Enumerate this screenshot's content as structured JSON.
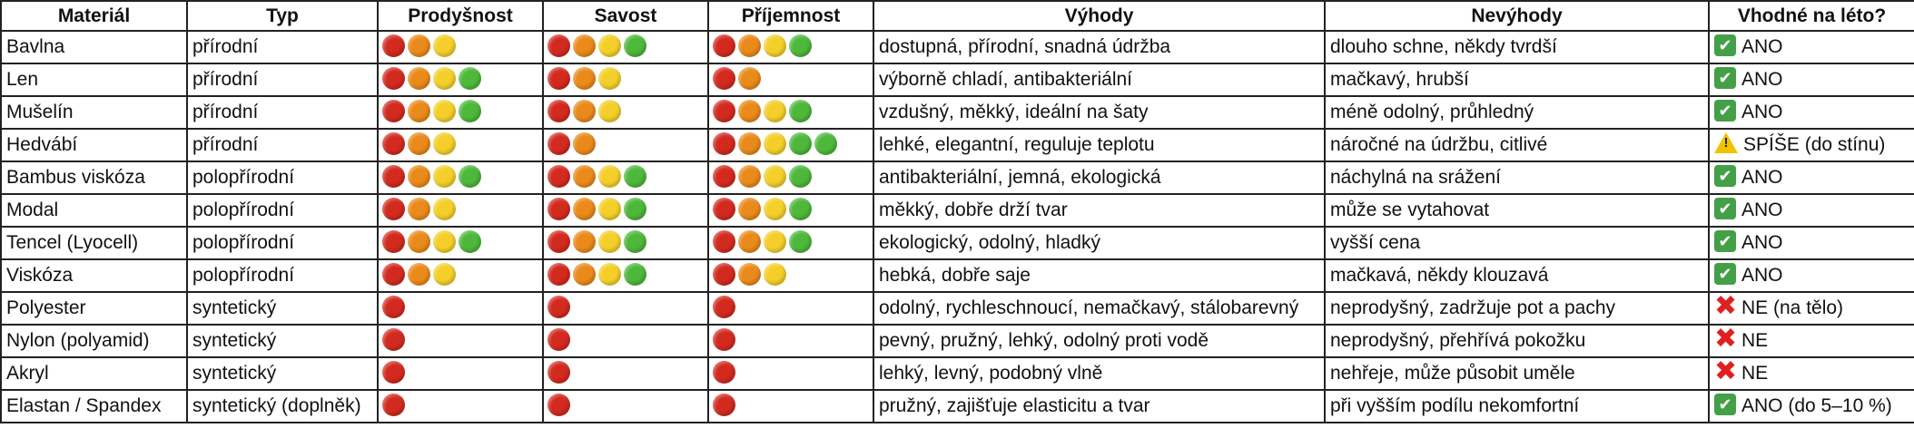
{
  "headers": [
    "Materiál",
    "Typ",
    "Prodyšnost",
    "Savost",
    "Příjemnost",
    "Výhody",
    "Nevýhody",
    "Vhodné na léto?"
  ],
  "colors": {
    "red": "#d32a1f",
    "orange": "#ea8a1a",
    "yellow": "#f4cf2a",
    "green": "#4db83a",
    "check": "#43a047",
    "warning": "#f2c200",
    "cross": "#e02020"
  },
  "dot_sequence": [
    "red",
    "orange",
    "yellow",
    "green",
    "green"
  ],
  "rows": [
    {
      "material": "Bavlna",
      "typ": "přírodní",
      "prodysnost": 3,
      "savost": 4,
      "prijemnost": 4,
      "vyhody": "dostupná, přírodní, snadná údržba",
      "nevyhody": "dlouho schne, někdy tvrdší",
      "verdict_icon": "check-icon",
      "verdict": "ANO"
    },
    {
      "material": "Len",
      "typ": "přírodní",
      "prodysnost": 4,
      "savost": 3,
      "prijemnost": 2,
      "vyhody": "výborně chladí, antibakteriální",
      "nevyhody": "mačkavý, hrubší",
      "verdict_icon": "check-icon",
      "verdict": "ANO"
    },
    {
      "material": "Mušelín",
      "typ": "přírodní",
      "prodysnost": 4,
      "savost": 3,
      "prijemnost": 4,
      "vyhody": "vzdušný, měkký, ideální na šaty",
      "nevyhody": "méně odolný, průhledný",
      "verdict_icon": "check-icon",
      "verdict": "ANO"
    },
    {
      "material": "Hedvábí",
      "typ": "přírodní",
      "prodysnost": 3,
      "savost": 2,
      "prijemnost": 5,
      "vyhody": "lehké, elegantní, reguluje teplotu",
      "nevyhody": "náročné na údržbu, citlivé",
      "verdict_icon": "warning-icon",
      "verdict": "SPÍŠE (do stínu)"
    },
    {
      "material": "Bambus viskóza",
      "typ": "polopřírodní",
      "prodysnost": 4,
      "savost": 4,
      "prijemnost": 4,
      "vyhody": "antibakteriální, jemná, ekologická",
      "nevyhody": "náchylná na srážení",
      "verdict_icon": "check-icon",
      "verdict": "ANO"
    },
    {
      "material": "Modal",
      "typ": "polopřírodní",
      "prodysnost": 3,
      "savost": 4,
      "prijemnost": 4,
      "vyhody": "měkký, dobře drží tvar",
      "nevyhody": "může se vytahovat",
      "verdict_icon": "check-icon",
      "verdict": "ANO"
    },
    {
      "material": "Tencel (Lyocell)",
      "typ": "polopřírodní",
      "prodysnost": 4,
      "savost": 4,
      "prijemnost": 4,
      "vyhody": "ekologický, odolný, hladký",
      "nevyhody": "vyšší cena",
      "verdict_icon": "check-icon",
      "verdict": "ANO"
    },
    {
      "material": "Viskóza",
      "typ": "polopřírodní",
      "prodysnost": 3,
      "savost": 4,
      "prijemnost": 3,
      "vyhody": "hebká, dobře saje",
      "nevyhody": "mačkavá, někdy klouzavá",
      "verdict_icon": "check-icon",
      "verdict": "ANO"
    },
    {
      "material": "Polyester",
      "typ": "syntetický",
      "prodysnost": 1,
      "savost": 1,
      "prijemnost": 1,
      "vyhody": "odolný, rychleschnoucí, nemačkavý, stálobarevný",
      "nevyhody": "neprodyšný, zadržuje pot a pachy",
      "verdict_icon": "cross-icon",
      "verdict": "NE (na tělo)"
    },
    {
      "material": "Nylon (polyamid)",
      "typ": "syntetický",
      "prodysnost": 1,
      "savost": 1,
      "prijemnost": 1,
      "vyhody": "pevný, pružný, lehký, odolný proti vodě",
      "nevyhody": "neprodyšný, přehřívá pokožku",
      "verdict_icon": "cross-icon",
      "verdict": "NE"
    },
    {
      "material": "Akryl",
      "typ": "syntetický",
      "prodysnost": 1,
      "savost": 1,
      "prijemnost": 1,
      "vyhody": "lehký, levný, podobný vlně",
      "nevyhody": "nehřeje, může působit uměle",
      "verdict_icon": "cross-icon",
      "verdict": "NE"
    },
    {
      "material": "Elastan / Spandex",
      "typ": "syntetický (doplněk)",
      "prodysnost": 1,
      "savost": 1,
      "prijemnost": 1,
      "vyhody": "pružný, zajišťuje elasticitu a tvar",
      "nevyhody": "při vyšším podílu nekomfortní",
      "verdict_icon": "check-icon",
      "verdict": "ANO (do 5–10 %)"
    }
  ]
}
